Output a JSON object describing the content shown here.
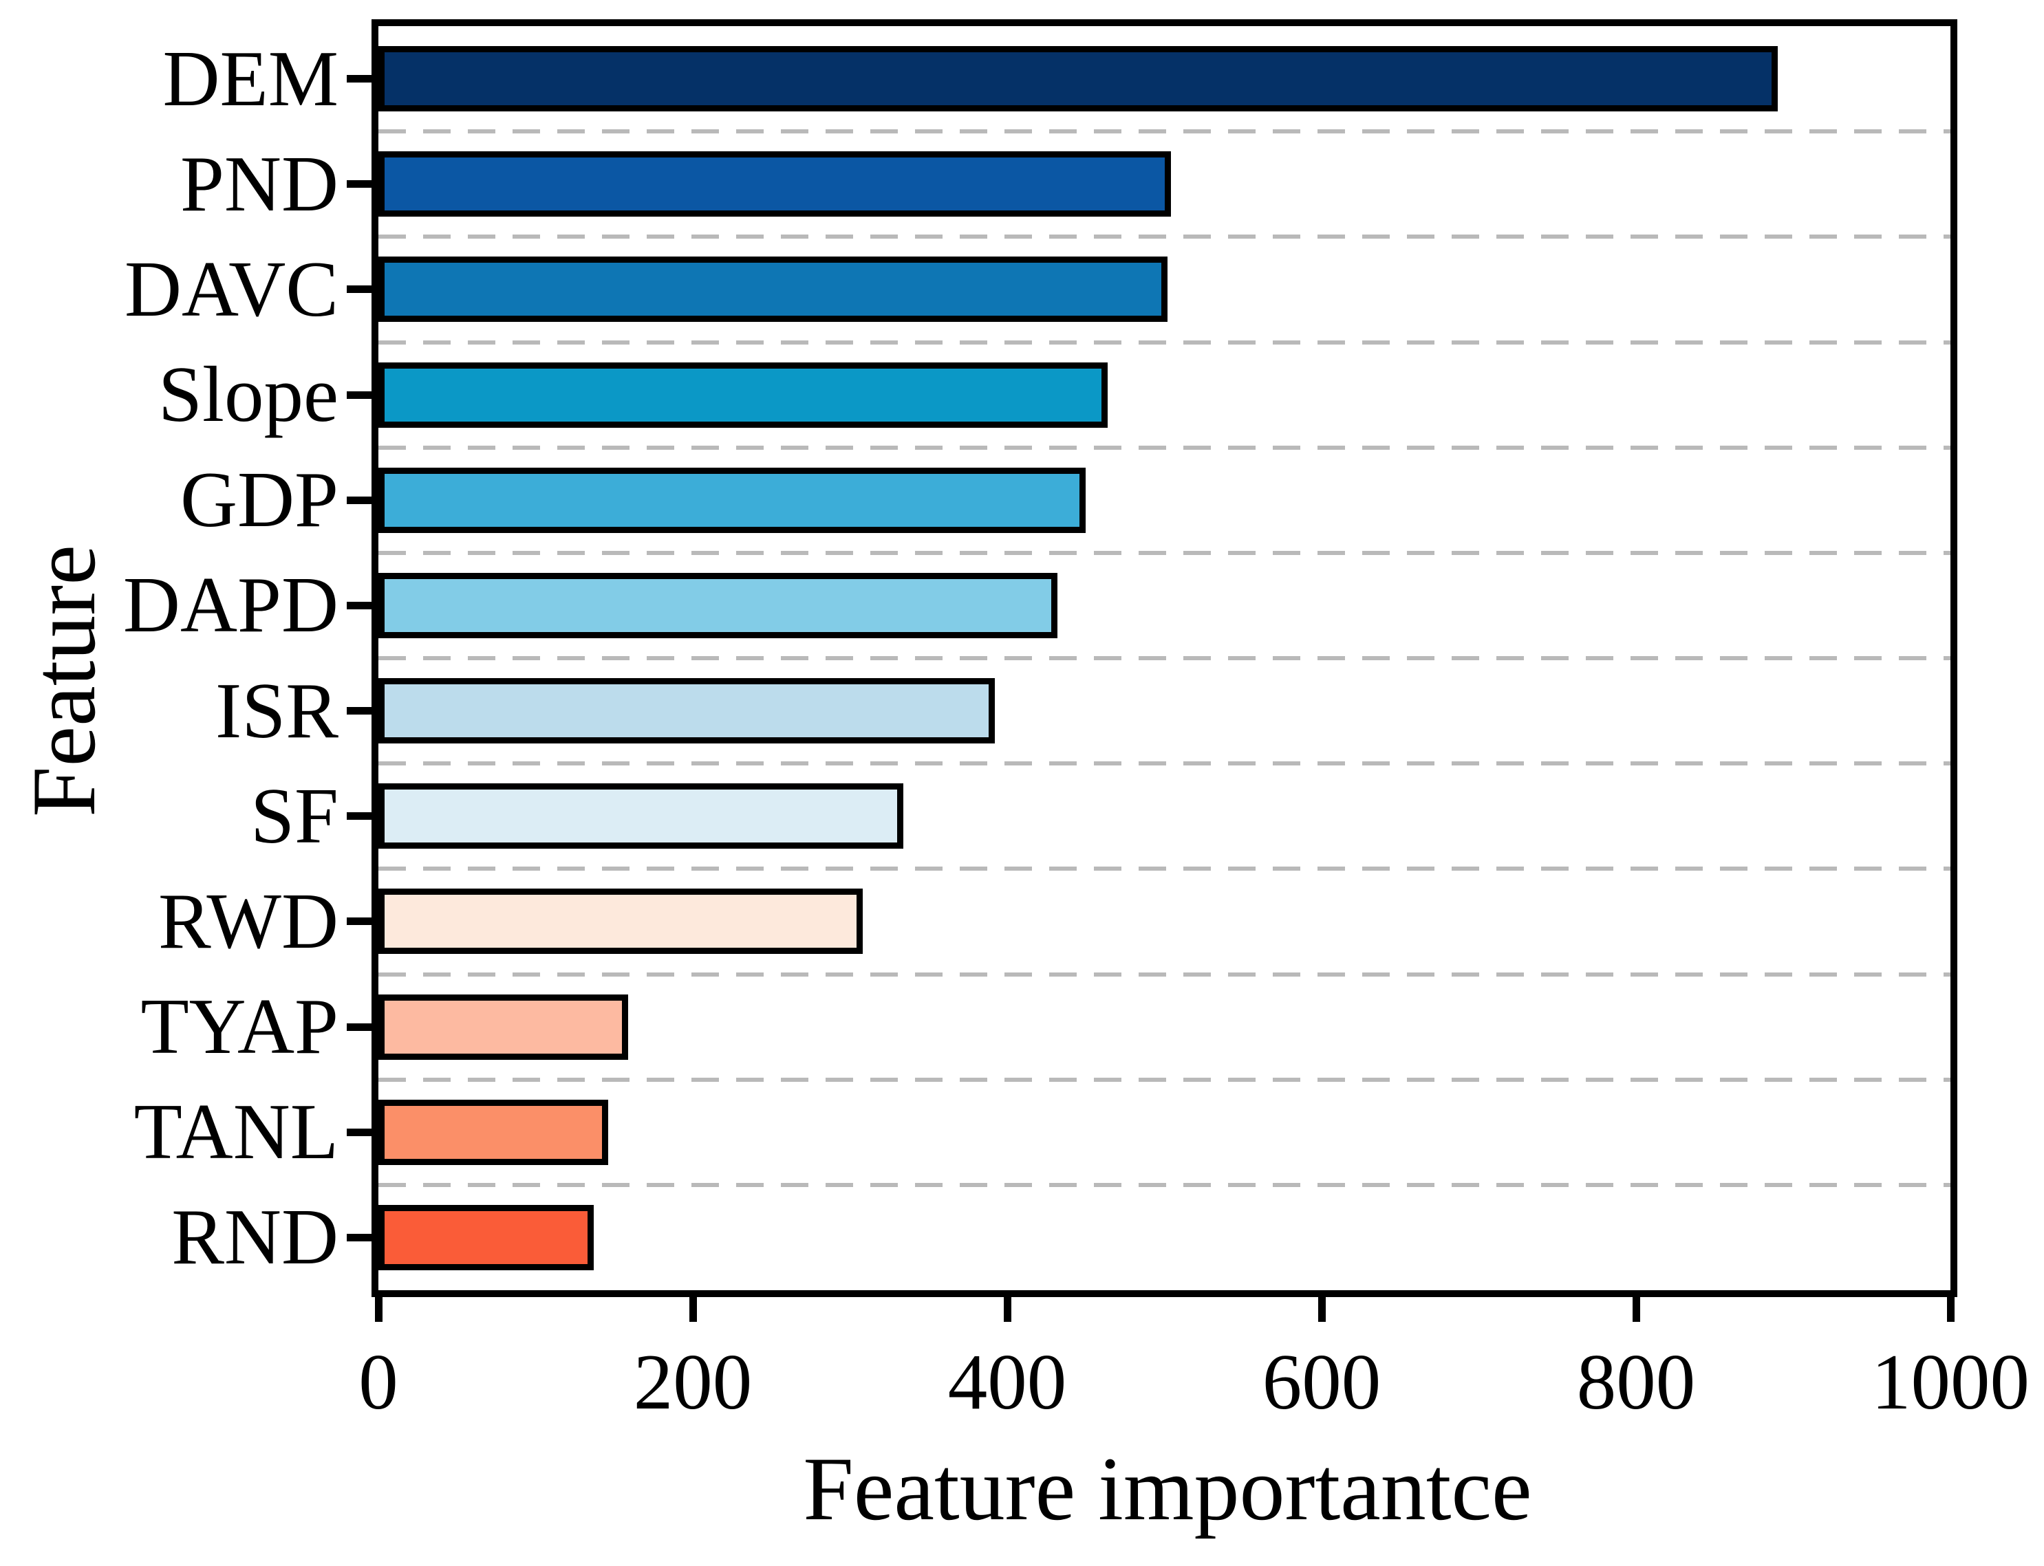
{
  "chart_data": {
    "type": "bar",
    "orientation": "horizontal",
    "title": "",
    "xlabel": "Feature importantce",
    "ylabel": "Feature",
    "xlim": [
      0,
      1000
    ],
    "xticks": [
      0,
      200,
      400,
      600,
      800,
      1000
    ],
    "grid": "dashed horizontal separators between category rows",
    "grid_color": "#b9b9b9",
    "bar_outline_color": "#000000",
    "categories": [
      "DEM",
      "PND",
      "DAVC",
      "Slope",
      "GDP",
      "DAPD",
      "ISR",
      "SF",
      "RWD",
      "TYAP",
      "TANL",
      "RND"
    ],
    "values": [
      890,
      504,
      502,
      464,
      450,
      432,
      392,
      334,
      308,
      159,
      146,
      137
    ],
    "colors": [
      "#053167",
      "#0b57a4",
      "#0e76b4",
      "#0b98c6",
      "#3cadd8",
      "#82cce7",
      "#bcdcec",
      "#dcedf5",
      "#fde9dc",
      "#fdbaa1",
      "#fb8f68",
      "#fa5c38"
    ]
  }
}
